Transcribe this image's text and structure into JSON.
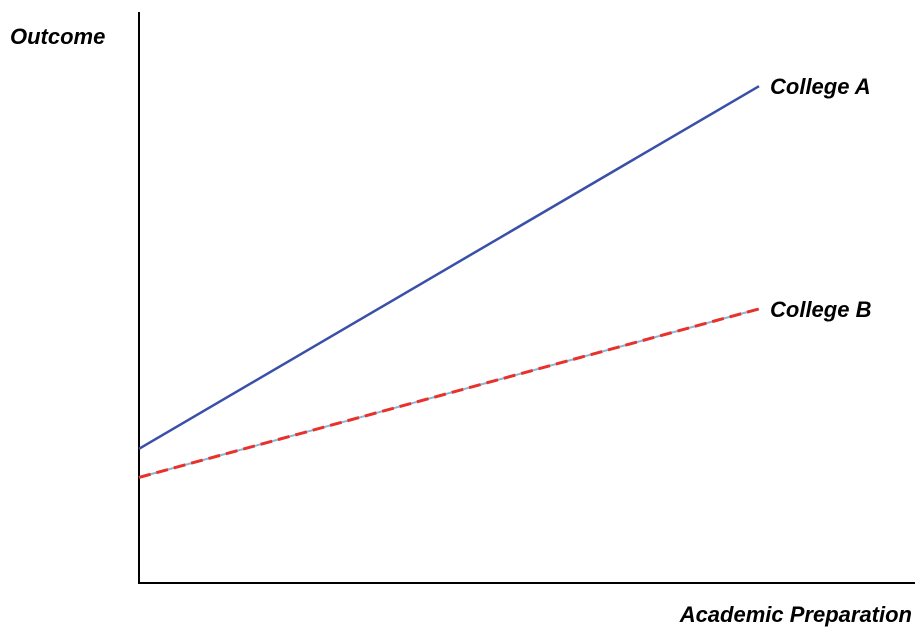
{
  "chart_data": {
    "type": "line",
    "xlabel": "Academic Preparation",
    "ylabel": "Outcome",
    "x_ticks_shown": false,
    "y_ticks_shown": false,
    "grid": false,
    "legend": "line-end labels",
    "xlim": [
      0,
      10
    ],
    "ylim": [
      0,
      10
    ],
    "series": [
      {
        "name": "College A",
        "x": [
          0,
          10
        ],
        "y": [
          2.35,
          8.7
        ],
        "color": "#3a50a8",
        "style": "solid"
      },
      {
        "name": "College B",
        "x": [
          0,
          10
        ],
        "y": [
          1.85,
          4.8
        ],
        "color": "#e8312a",
        "underlay_color": "#8fb4d4",
        "style": "dashed"
      }
    ]
  }
}
